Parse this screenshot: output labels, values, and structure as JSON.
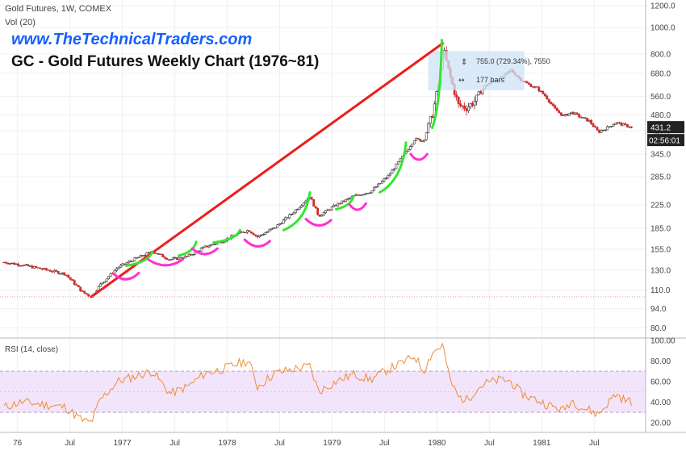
{
  "header": {
    "symbol_line": "Gold Futures, 1W, COMEX",
    "volume_label": "Vol (20)",
    "website": "www.TheTechnicalTraders.com",
    "title": "GC - Gold Futures Weekly Chart (1976~81)"
  },
  "measure": {
    "change": "755.0 (729.34%), 7550",
    "bars": "177 bars"
  },
  "price_badges": {
    "last_price": "431.2",
    "countdown": "02:56:01",
    "badge_color": "#222222"
  },
  "rsi_panel": {
    "label": "RSI (14, close)",
    "axis_ticks": [
      "100.00",
      "80.00",
      "60.00",
      "40.00",
      "20.00"
    ]
  },
  "colors": {
    "up_candle": "#333333",
    "down_candle": "#cc2a2a",
    "trend_line": "#ee1c1c",
    "green_arc": "#33e633",
    "magenta_arc": "#ff33cc",
    "rsi_line": "#f08c32",
    "rsi_band": "#f2e4fb",
    "measure_box": "#cfe3f7"
  },
  "chart_data": {
    "type": "candlestick",
    "title": "GC - Gold Futures Weekly Chart (1976~81)",
    "y_scale": "log",
    "y_ticks": [
      80.0,
      94.0,
      110.0,
      130.0,
      155.0,
      185.0,
      225.0,
      285.0,
      345.0,
      420.0,
      480.0,
      560.0,
      680.0,
      800.0,
      1000.0,
      1200.0
    ],
    "x_tick_labels": [
      "76",
      "Jul",
      "1977",
      "Jul",
      "1978",
      "Jul",
      "1979",
      "Jul",
      "1980",
      "Jul",
      "1981",
      "Jul"
    ],
    "x_tick_dates": [
      "1976-01",
      "1976-07",
      "1977-01",
      "1977-07",
      "1978-01",
      "1978-07",
      "1979-01",
      "1979-07",
      "1980-01",
      "1980-07",
      "1981-01",
      "1981-07"
    ],
    "x_range": [
      "1975-11",
      "1981-12"
    ],
    "price_path": [
      [
        "1975-11",
        139
      ],
      [
        "1976-01",
        136
      ],
      [
        "1976-04",
        130
      ],
      [
        "1976-06",
        126
      ],
      [
        "1976-08",
        108
      ],
      [
        "1976-09",
        104
      ],
      [
        "1976-10",
        115
      ],
      [
        "1976-12",
        133
      ],
      [
        "1977-02",
        143
      ],
      [
        "1977-04",
        152
      ],
      [
        "1977-06",
        142
      ],
      [
        "1977-08",
        146
      ],
      [
        "1977-10",
        158
      ],
      [
        "1977-12",
        166
      ],
      [
        "1978-02",
        178
      ],
      [
        "1978-03",
        182
      ],
      [
        "1978-04",
        172
      ],
      [
        "1978-06",
        186
      ],
      [
        "1978-08",
        210
      ],
      [
        "1978-10",
        242
      ],
      [
        "1978-11",
        205
      ],
      [
        "1979-01",
        225
      ],
      [
        "1979-03",
        242
      ],
      [
        "1979-05",
        252
      ],
      [
        "1979-07",
        288
      ],
      [
        "1979-09",
        352
      ],
      [
        "1979-10",
        392
      ],
      [
        "1979-11",
        385
      ],
      [
        "1979-12",
        480
      ],
      [
        "1980-01-10",
        640
      ],
      [
        "1980-01-21",
        850
      ],
      [
        "1980-02",
        670
      ],
      [
        "1980-03",
        520
      ],
      [
        "1980-04",
        510
      ],
      [
        "1980-05",
        545
      ],
      [
        "1980-06",
        610
      ],
      [
        "1980-07",
        640
      ],
      [
        "1980-08",
        655
      ],
      [
        "1980-09",
        700
      ],
      [
        "1980-10",
        650
      ],
      [
        "1980-11",
        620
      ],
      [
        "1980-12",
        600
      ],
      [
        "1981-01",
        560
      ],
      [
        "1981-02",
        505
      ],
      [
        "1981-03",
        475
      ],
      [
        "1981-04",
        490
      ],
      [
        "1981-05",
        470
      ],
      [
        "1981-06",
        455
      ],
      [
        "1981-07",
        415
      ],
      [
        "1981-08",
        430
      ],
      [
        "1981-09",
        450
      ],
      [
        "1981-10",
        440
      ],
      [
        "1981-11",
        431.2
      ]
    ],
    "trend_line": {
      "from": [
        "1976-09",
        104
      ],
      "to": [
        "1980-01-21",
        875
      ]
    },
    "measure": {
      "from": [
        "1979-12",
        590
      ],
      "to": [
        "1980-11",
        820
      ],
      "change": 755.0,
      "change_pct": 729.34,
      "ticks": 7550,
      "bars": 177
    },
    "green_arcs": [
      [
        [
          "1977-01",
          135
        ],
        [
          "1977-04",
          152
        ]
      ],
      [
        [
          "1977-07",
          147
        ],
        [
          "1977-09",
          165
        ]
      ],
      [
        [
          "1977-11",
          164
        ],
        [
          "1978-02",
          182
        ]
      ],
      [
        [
          "1978-07",
          182
        ],
        [
          "1978-10",
          250
        ]
      ],
      [
        [
          "1979-01",
          217
        ],
        [
          "1979-03",
          242
        ]
      ],
      [
        [
          "1979-06",
          250
        ],
        [
          "1979-09",
          380
        ]
      ],
      [
        [
          "1979-12",
          430
        ],
        [
          "1980-01-18",
          900
        ]
      ]
    ],
    "magenta_arcs": [
      [
        [
          "1976-12",
          126
        ],
        [
          "1977-02",
          127
        ]
      ],
      [
        [
          "1977-04",
          142
        ],
        [
          "1977-07",
          142
        ]
      ],
      [
        [
          "1977-09",
          156
        ],
        [
          "1977-11",
          156
        ]
      ],
      [
        [
          "1978-03",
          168
        ],
        [
          "1978-05",
          166
        ]
      ],
      [
        [
          "1978-10",
          200
        ],
        [
          "1978-12",
          198
        ]
      ],
      [
        [
          "1979-03",
          226
        ],
        [
          "1979-04",
          228
        ]
      ],
      [
        [
          "1979-10",
          345
        ],
        [
          "1979-11",
          345
        ]
      ]
    ],
    "rsi": {
      "ylim": [
        12,
        100
      ],
      "ticks": [
        20,
        40,
        60,
        80,
        100
      ],
      "band": [
        30,
        70
      ],
      "values": [
        [
          "1975-11",
          35
        ],
        [
          "1976-01",
          40
        ],
        [
          "1976-04",
          37
        ],
        [
          "1976-06",
          35
        ],
        [
          "1976-08",
          22
        ],
        [
          "1976-09",
          20
        ],
        [
          "1976-10",
          42
        ],
        [
          "1976-12",
          60
        ],
        [
          "1977-02",
          65
        ],
        [
          "1977-04",
          70
        ],
        [
          "1977-06",
          48
        ],
        [
          "1977-08",
          55
        ],
        [
          "1977-10",
          68
        ],
        [
          "1977-12",
          72
        ],
        [
          "1978-02",
          78
        ],
        [
          "1978-03",
          80
        ],
        [
          "1978-04",
          55
        ],
        [
          "1978-06",
          68
        ],
        [
          "1978-08",
          72
        ],
        [
          "1978-10",
          75
        ],
        [
          "1978-11",
          50
        ],
        [
          "1979-01",
          60
        ],
        [
          "1979-03",
          67
        ],
        [
          "1979-05",
          62
        ],
        [
          "1979-07",
          72
        ],
        [
          "1979-09",
          80
        ],
        [
          "1979-10",
          85
        ],
        [
          "1979-11",
          70
        ],
        [
          "1979-12",
          88
        ],
        [
          "1980-01-10",
          93
        ],
        [
          "1980-01-21",
          96
        ],
        [
          "1980-02",
          62
        ],
        [
          "1980-03",
          45
        ],
        [
          "1980-04",
          42
        ],
        [
          "1980-05",
          52
        ],
        [
          "1980-06",
          58
        ],
        [
          "1980-07",
          60
        ],
        [
          "1980-08",
          62
        ],
        [
          "1980-09",
          60
        ],
        [
          "1980-10",
          50
        ],
        [
          "1980-11",
          45
        ],
        [
          "1980-12",
          42
        ],
        [
          "1981-01",
          38
        ],
        [
          "1981-02",
          35
        ],
        [
          "1981-03",
          32
        ],
        [
          "1981-04",
          42
        ],
        [
          "1981-05",
          35
        ],
        [
          "1981-06",
          32
        ],
        [
          "1981-07",
          28
        ],
        [
          "1981-08",
          38
        ],
        [
          "1981-09",
          48
        ],
        [
          "1981-10",
          42
        ],
        [
          "1981-11",
          40
        ]
      ]
    }
  }
}
